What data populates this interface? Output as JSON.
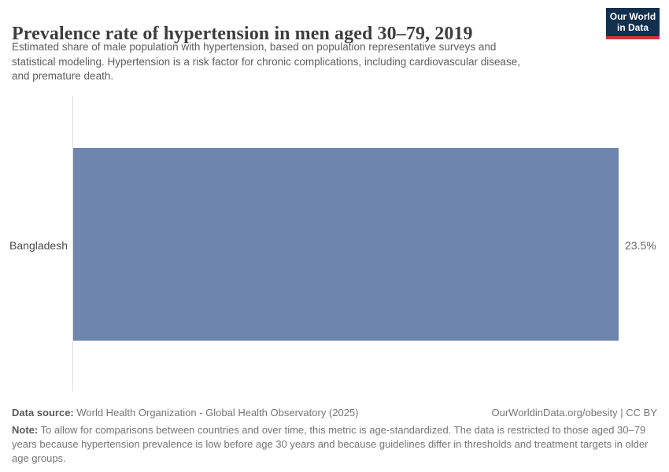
{
  "header": {
    "title": "Prevalence rate of hypertension in men aged 30–79, 2019",
    "subtitle_lines": [
      "Estimated share of male population with hypertension, based on population representative surveys and",
      "statistical modeling. Hypertension is a risk factor for chronic complications, including cardiovascular disease,",
      "and premature death."
    ],
    "logo": {
      "line1": "Our World",
      "line2": "in Data",
      "bg_color": "#12304e",
      "accent_color": "#d0343f"
    }
  },
  "chart_data": {
    "type": "bar",
    "orientation": "horizontal",
    "title": "Prevalence rate of hypertension in men aged 30–79, 2019",
    "categories": [
      "Bangladesh"
    ],
    "values": [
      23.5
    ],
    "value_labels": [
      "23.5%"
    ],
    "xlabel": "",
    "ylabel": "",
    "xlim": [
      0,
      23.5
    ],
    "grid": false,
    "legend": "none",
    "bar_color": "#6e85ae",
    "axis_line_color": "#dcdcdc"
  },
  "footer": {
    "datasource_label": "Data source:",
    "datasource_text": " World Health Organization - Global Health Observatory (2025)",
    "attribution": "OurWorldinData.org/obesity | CC BY",
    "note_label": "Note:",
    "note_line1_rest": " To allow for comparisons between countries and over time, this metric is age-standardized. The data is restricted to those aged 30–79",
    "note_lines_rest": [
      "years because hypertension prevalence is low before age 30 years and because guidelines differ in thresholds and treatment targets in older",
      "age groups."
    ]
  }
}
